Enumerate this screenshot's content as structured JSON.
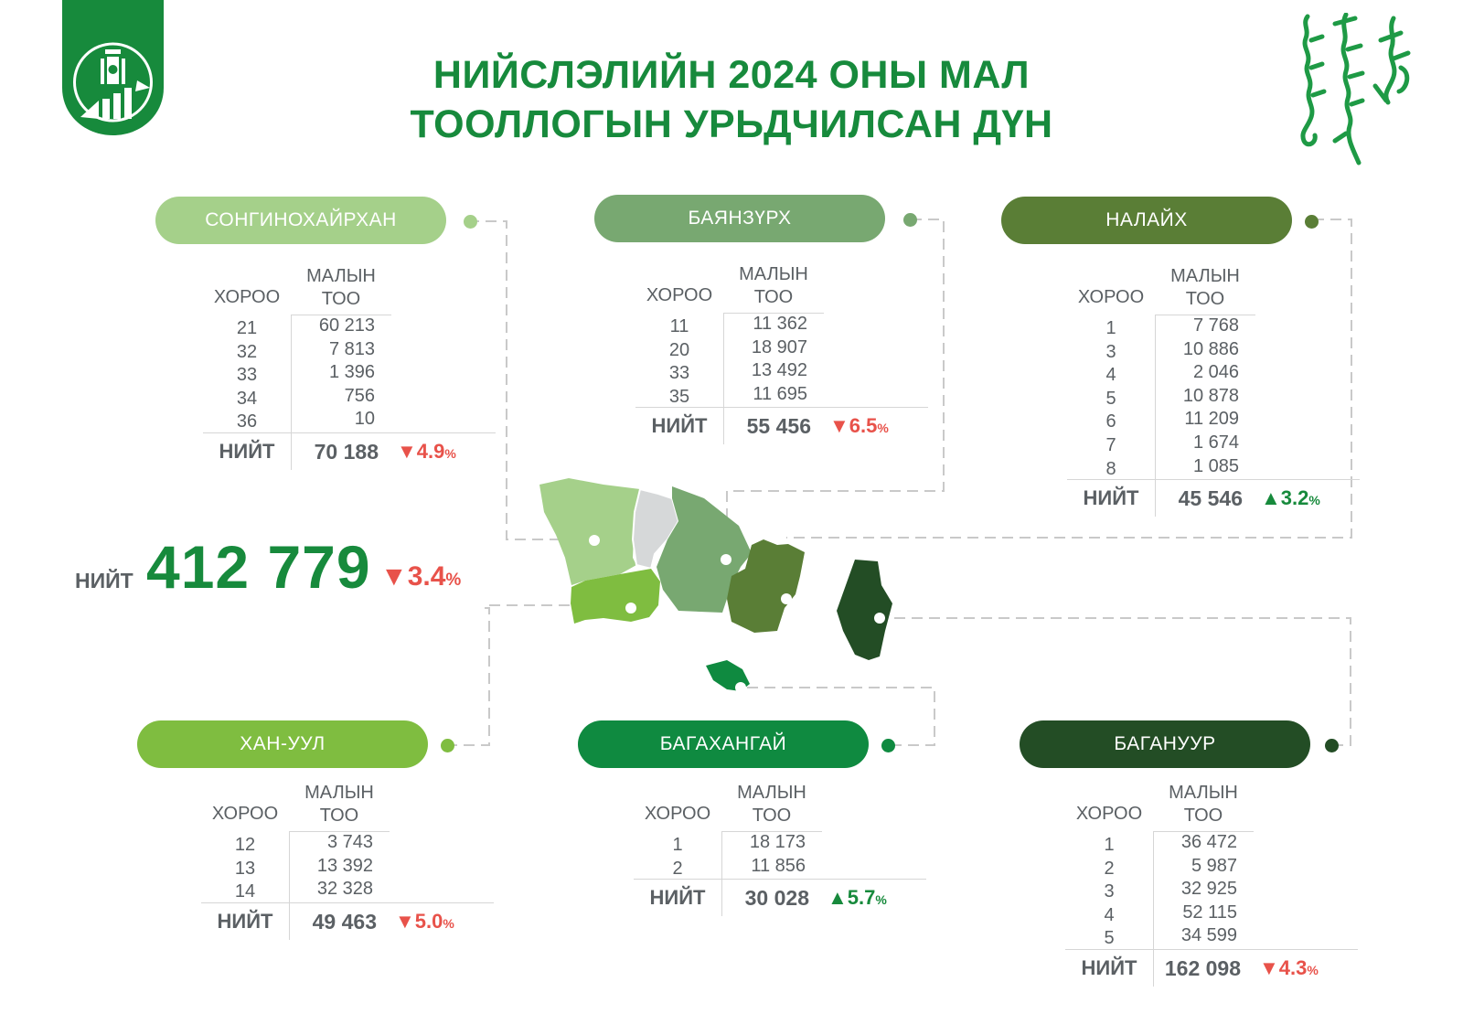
{
  "title": {
    "line1": "НИЙСЛЭЛИЙН 2024 ОНЫ МАЛ",
    "line2": "ТООЛЛОГЫН УРЬДЧИЛСАН ДҮН"
  },
  "table_headers": {
    "khoroo": "ХОРОО",
    "count_line1": "МАЛЫН",
    "count_line2": "ТОО",
    "total": "НИЙТ"
  },
  "grand_total": {
    "label": "НИЙТ",
    "value": "412 779",
    "change": "3.4",
    "direction": "down"
  },
  "colors": {
    "title_green": "#178a3c",
    "decrease": "#e8524a",
    "increase": "#178a3c",
    "songinokhairkhan": "#a5d08a",
    "bayanzurkh": "#78a871",
    "nalaikh": "#5a7e36",
    "khan_uul": "#7fbd40",
    "bagakhangai": "#0f8a40",
    "baganuur": "#234d25",
    "chingeltei": "#d6d8d9"
  },
  "districts": [
    {
      "id": "songinokhairkhan",
      "name": "СОНГИНОХАЙРХАН",
      "color": "#a5d08a",
      "rows": [
        {
          "khoroo": "21",
          "count": "60 213"
        },
        {
          "khoroo": "32",
          "count": "7 813"
        },
        {
          "khoroo": "33",
          "count": "1 396"
        },
        {
          "khoroo": "34",
          "count": "756"
        },
        {
          "khoroo": "36",
          "count": "10"
        }
      ],
      "total": "70 188",
      "change": "4.9",
      "direction": "down"
    },
    {
      "id": "bayanzurkh",
      "name": "БАЯНЗҮРХ",
      "color": "#78a871",
      "rows": [
        {
          "khoroo": "11",
          "count": "11 362"
        },
        {
          "khoroo": "20",
          "count": "18 907"
        },
        {
          "khoroo": "33",
          "count": "13 492"
        },
        {
          "khoroo": "35",
          "count": "11 695"
        }
      ],
      "total": "55 456",
      "change": "6.5",
      "direction": "down"
    },
    {
      "id": "nalaikh",
      "name": "НАЛАЙХ",
      "color": "#5a7e36",
      "rows": [
        {
          "khoroo": "1",
          "count": "7 768"
        },
        {
          "khoroo": "3",
          "count": "10 886"
        },
        {
          "khoroo": "4",
          "count": "2 046"
        },
        {
          "khoroo": "5",
          "count": "10 878"
        },
        {
          "khoroo": "6",
          "count": "11 209"
        },
        {
          "khoroo": "7",
          "count": "1 674"
        },
        {
          "khoroo": "8",
          "count": "1 085"
        }
      ],
      "total": "45 546",
      "change": "3.2",
      "direction": "up"
    },
    {
      "id": "khan_uul",
      "name": "ХАН-УУЛ",
      "color": "#7fbd40",
      "rows": [
        {
          "khoroo": "12",
          "count": "3 743"
        },
        {
          "khoroo": "13",
          "count": "13 392"
        },
        {
          "khoroo": "14",
          "count": "32 328"
        }
      ],
      "total": "49 463",
      "change": "5.0",
      "direction": "down"
    },
    {
      "id": "bagakhangai",
      "name": "БАГАХАНГАЙ",
      "color": "#0f8a40",
      "rows": [
        {
          "khoroo": "1",
          "count": "18 173"
        },
        {
          "khoroo": "2",
          "count": "11 856"
        }
      ],
      "total": "30 028",
      "change": "5.7",
      "direction": "up"
    },
    {
      "id": "baganuur",
      "name": "БАГАНУУР",
      "color": "#234d25",
      "rows": [
        {
          "khoroo": "1",
          "count": "36 472"
        },
        {
          "khoroo": "2",
          "count": "5 987"
        },
        {
          "khoroo": "3",
          "count": "32 925"
        },
        {
          "khoroo": "4",
          "count": "52 115"
        },
        {
          "khoroo": "5",
          "count": "34 599"
        }
      ],
      "total": "162 098",
      "change": "4.3",
      "direction": "down"
    }
  ]
}
